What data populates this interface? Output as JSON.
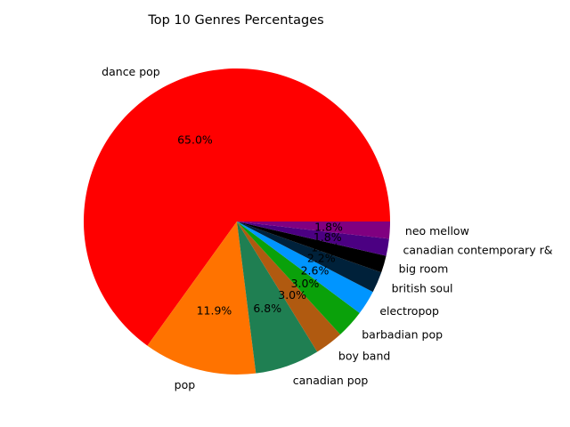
{
  "chart_data": {
    "type": "pie",
    "title": "Top 10 Genres Percentages",
    "slices": [
      {
        "label": "dance pop",
        "value": 65.0,
        "pct_label": "65.0%",
        "color": "#ff0000"
      },
      {
        "label": "pop",
        "value": 11.9,
        "pct_label": "11.9%",
        "color": "#ff7300"
      },
      {
        "label": "canadian pop",
        "value": 6.8,
        "pct_label": "6.8%",
        "color": "#1f7f52"
      },
      {
        "label": "boy band",
        "value": 3.0,
        "pct_label": "3.0%",
        "color": "#b05a10"
      },
      {
        "label": "barbadian pop",
        "value": 3.0,
        "pct_label": "3.0%",
        "color": "#0aa10a"
      },
      {
        "label": "electropop",
        "value": 2.6,
        "pct_label": "2.6%",
        "color": "#0095ff"
      },
      {
        "label": "british soul",
        "value": 2.2,
        "pct_label": "2.2%",
        "color": "#00213a"
      },
      {
        "label": "big room",
        "value": 1.8,
        "pct_label": "1.8%",
        "color": "#000000"
      },
      {
        "label": "canadian contemporary r&",
        "value": 1.8,
        "pct_label": "1.8%",
        "color": "#4b0082"
      },
      {
        "label": "neo mellow",
        "value": 1.8,
        "pct_label": "1.8%",
        "color": "#800080"
      }
    ]
  }
}
